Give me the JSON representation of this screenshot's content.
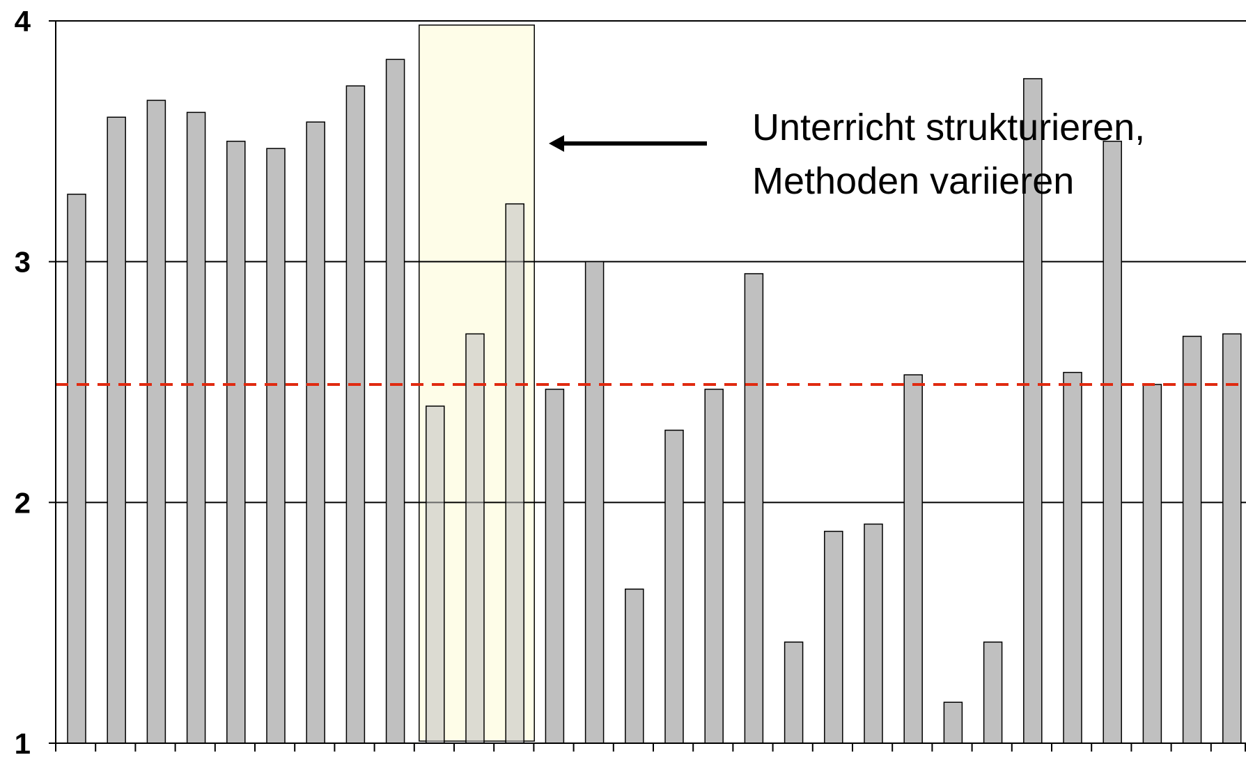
{
  "chart_data": {
    "type": "bar",
    "title": "",
    "xlabel": "",
    "ylabel": "",
    "ylim": [
      1,
      4
    ],
    "yticks": [
      "1",
      "2",
      "3",
      "4"
    ],
    "grid": true,
    "legend": "none",
    "bar_color": "#c0c0c0",
    "bar_outline": "#000000",
    "values": [
      3.28,
      3.6,
      3.67,
      3.62,
      3.5,
      3.47,
      3.58,
      3.73,
      3.84,
      2.4,
      2.7,
      3.24,
      2.47,
      3.0,
      1.64,
      2.3,
      2.47,
      2.95,
      1.42,
      1.88,
      1.91,
      2.53,
      1.17,
      1.42,
      3.76,
      2.54,
      3.5,
      2.49,
      2.69,
      2.7
    ],
    "reference_line": {
      "value": 2.49,
      "color": "#e02a10",
      "style": "dashed"
    },
    "highlight": {
      "from_index": 9,
      "to_index": 11,
      "fill": "#fefde8"
    },
    "annotation": {
      "lines": [
        "Unterricht strukturieren,",
        "Methoden variieren"
      ]
    }
  }
}
